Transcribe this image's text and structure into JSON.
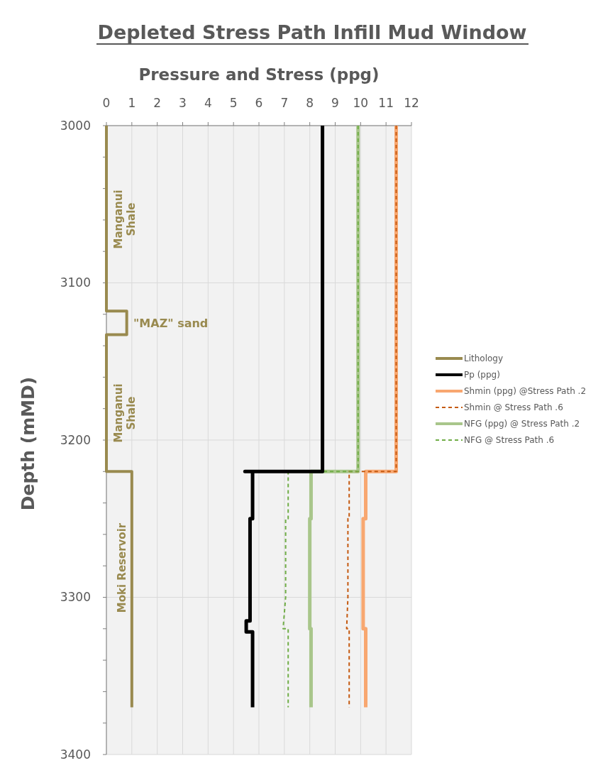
{
  "chart_data": {
    "type": "line",
    "title": "Depleted Stress Path Infill Mud Window",
    "xlabel": "Pressure and Stress (ppg)",
    "ylabel": "Depth (mMD)",
    "xlim": [
      0,
      12
    ],
    "xticks": [
      0,
      1,
      2,
      3,
      4,
      5,
      6,
      7,
      8,
      9,
      10,
      11,
      12
    ],
    "ylim": [
      3400,
      3000
    ],
    "yticks": [
      3000,
      {
        "value": 3020,
        "label": null
      },
      {
        "value": 3040,
        "label": null
      },
      {
        "value": 3060,
        "label": null
      },
      {
        "value": 3080,
        "label": null
      },
      3100,
      {
        "value": 3120,
        "label": null
      },
      {
        "value": 3140,
        "label": null
      },
      {
        "value": 3160,
        "label": null
      },
      {
        "value": 3180,
        "label": null
      },
      3200,
      {
        "value": 3220,
        "label": null
      },
      {
        "value": 3240,
        "label": null
      },
      {
        "value": 3260,
        "label": null
      },
      {
        "value": 3280,
        "label": null
      },
      3300,
      {
        "value": 3320,
        "label": null
      },
      {
        "value": 3340,
        "label": null
      },
      {
        "value": 3360,
        "label": null
      },
      {
        "value": 3380,
        "label": null
      },
      3400
    ],
    "grid": true,
    "legend": "right",
    "marker": "none",
    "series": [
      {
        "name": "Lithology",
        "color": "#998a4f",
        "line_style": "solid",
        "x": [
          0,
          0,
          0.8,
          0.8,
          0,
          0,
          1,
          1
        ],
        "values": [
          3000,
          3118,
          3118,
          3133,
          3133,
          3220,
          3220,
          3370
        ]
      },
      {
        "name": "Pp (ppg)",
        "color": "#000000",
        "line_style": "solid",
        "x": [
          8.5,
          8.5,
          5.45,
          5.75,
          5.75,
          5.65,
          5.65,
          5.5,
          5.5,
          5.75,
          5.75
        ],
        "values": [
          3000,
          3220,
          3220,
          3220,
          3250,
          3250,
          3315,
          3315,
          3322,
          3322,
          3370
        ]
      },
      {
        "name": "Shmin (ppg) @Stress Path .2",
        "color": "#f8a770",
        "line_style": "solid",
        "x": [
          11.4,
          11.4,
          10.2,
          10.2,
          10.1,
          10.1,
          10.2,
          10.2
        ],
        "values": [
          3000,
          3220,
          3220,
          3250,
          3250,
          3320,
          3320,
          3370
        ]
      },
      {
        "name": "Shmin @ Stress Path .6",
        "color": "#c55a11",
        "line_style": "dashed",
        "x": [
          11.4,
          11.4,
          9.55,
          9.55,
          9.5,
          9.5,
          9.45,
          9.55,
          9.55
        ],
        "values": [
          3000,
          3220,
          3220,
          3250,
          3250,
          3300,
          3320,
          3320,
          3370
        ]
      },
      {
        "name": "NFG (ppg) @ Stress Path .2",
        "color": "#a9c68b",
        "line_style": "solid",
        "x": [
          9.9,
          9.9,
          8.05,
          8.05,
          8.0,
          8.0,
          8.05,
          8.05
        ],
        "values": [
          3000,
          3220,
          3220,
          3250,
          3250,
          3320,
          3320,
          3370
        ]
      },
      {
        "name": "NFG @ Stress Path .6",
        "color": "#70ad47",
        "line_style": "dashed",
        "x": [
          9.9,
          9.9,
          7.15,
          7.15,
          7.05,
          7.05,
          6.95,
          7.15,
          7.15
        ],
        "values": [
          3000,
          3220,
          3220,
          3250,
          3250,
          3300,
          3320,
          3320,
          3370
        ]
      }
    ],
    "annotations": [
      "Manganui Shale",
      "\"MAZ\" sand",
      "Manganui Shale",
      "Moki Reservoir"
    ]
  }
}
